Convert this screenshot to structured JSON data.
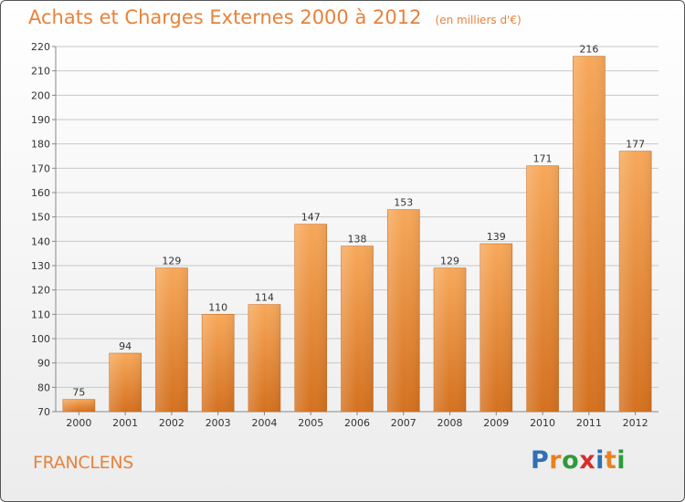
{
  "header": {
    "title": "Achats et Charges Externes 2000 à 2012",
    "subtitle": "(en milliers d'€)"
  },
  "footer": {
    "commune": "FRANCLENS",
    "brand": {
      "letters": [
        "P",
        "r",
        "o",
        "x",
        "i",
        "t",
        "i"
      ],
      "colors": [
        "#2f6fb5",
        "#e8821e",
        "#2f9a3a",
        "#d92c2c",
        "#2f6fb5",
        "#e8821e",
        "#2f9a3a"
      ]
    }
  },
  "chart_data": {
    "type": "bar",
    "title": "Achats et Charges Externes 2000 à 2012",
    "subtitle": "(en milliers d'€)",
    "categories": [
      "2000",
      "2001",
      "2002",
      "2003",
      "2004",
      "2005",
      "2006",
      "2007",
      "2008",
      "2009",
      "2010",
      "2011",
      "2012"
    ],
    "values": [
      75,
      94,
      129,
      110,
      114,
      147,
      138,
      153,
      129,
      139,
      171,
      216,
      177
    ],
    "xlabel": "",
    "ylabel": "",
    "ylim": [
      70,
      220
    ],
    "yticks": [
      70,
      80,
      90,
      100,
      110,
      120,
      130,
      140,
      150,
      160,
      170,
      180,
      190,
      200,
      210,
      220
    ],
    "grid": true,
    "bar_color_top": "#f7a85a",
    "bar_color_bottom": "#d4711f"
  }
}
